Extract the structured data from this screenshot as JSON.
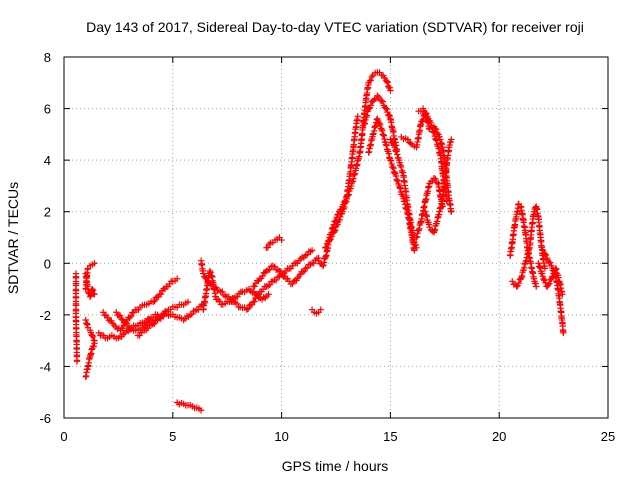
{
  "chart_data": {
    "type": "scatter",
    "title": "Day 143 of 2017, Sidereal Day-to-day VTEC variation (SDTVAR) for receiver roji",
    "xlabel": "GPS time / hours",
    "ylabel": "SDTVAR / TECUs",
    "xlim": [
      0,
      25
    ],
    "ylim": [
      -6,
      8
    ],
    "xticks": [
      0,
      5,
      10,
      15,
      20,
      25
    ],
    "yticks": [
      -6,
      -4,
      -2,
      0,
      2,
      4,
      6,
      8
    ],
    "grid": true,
    "marker": "+",
    "color": "#ff0000",
    "series": [
      {
        "name": "SDTVAR",
        "tracks": [
          [
            [
              0.55,
              -0.4
            ],
            [
              0.55,
              -2.1
            ],
            [
              0.6,
              -3.8
            ]
          ],
          [
            [
              1.0,
              -4.4
            ],
            [
              1.1,
              -4.0
            ],
            [
              1.2,
              -3.6
            ],
            [
              1.3,
              -3.3
            ],
            [
              1.4,
              -3.1
            ]
          ],
          [
            [
              1.0,
              -1.0
            ],
            [
              1.05,
              -0.5
            ],
            [
              1.1,
              -0.2
            ],
            [
              1.2,
              -0.1
            ],
            [
              1.3,
              -0.05
            ],
            [
              1.4,
              -0.0
            ]
          ],
          [
            [
              1.0,
              -0.4
            ],
            [
              1.1,
              -1.0
            ],
            [
              1.2,
              -1.3
            ],
            [
              1.3,
              -1.0
            ],
            [
              1.4,
              -1.2
            ]
          ],
          [
            [
              1.0,
              -2.2
            ],
            [
              1.1,
              -2.5
            ],
            [
              1.2,
              -2.6
            ],
            [
              1.3,
              -2.8
            ],
            [
              1.4,
              -3.0
            ]
          ],
          [
            [
              1.6,
              -2.7
            ],
            [
              1.9,
              -2.9
            ],
            [
              2.2,
              -2.8
            ],
            [
              2.5,
              -2.9
            ],
            [
              2.8,
              -2.7
            ],
            [
              3.1,
              -2.5
            ],
            [
              3.4,
              -2.4
            ],
            [
              3.7,
              -2.3
            ],
            [
              4.0,
              -2.1
            ],
            [
              4.3,
              -2.0
            ]
          ],
          [
            [
              1.8,
              -1.9
            ],
            [
              2.0,
              -2.1
            ],
            [
              2.3,
              -2.4
            ],
            [
              2.6,
              -2.6
            ],
            [
              2.9,
              -2.2
            ],
            [
              3.2,
              -1.9
            ],
            [
              3.5,
              -1.7
            ],
            [
              3.8,
              -1.6
            ],
            [
              4.1,
              -1.5
            ],
            [
              4.4,
              -1.2
            ],
            [
              4.7,
              -0.9
            ],
            [
              5.0,
              -0.7
            ],
            [
              5.2,
              -0.6
            ]
          ],
          [
            [
              2.4,
              -1.9
            ],
            [
              2.7,
              -2.2
            ],
            [
              3.0,
              -2.5
            ],
            [
              3.3,
              -2.6
            ],
            [
              3.6,
              -2.5
            ],
            [
              3.9,
              -2.3
            ],
            [
              4.2,
              -2.2
            ],
            [
              4.5,
              -2.0
            ],
            [
              4.8,
              -1.8
            ],
            [
              5.1,
              -1.7
            ],
            [
              5.4,
              -1.6
            ],
            [
              5.7,
              -1.5
            ]
          ],
          [
            [
              3.4,
              -2.8
            ],
            [
              3.7,
              -2.6
            ],
            [
              4.0,
              -2.4
            ],
            [
              4.3,
              -2.2
            ],
            [
              4.6,
              -2.0
            ],
            [
              4.9,
              -2.0
            ],
            [
              5.2,
              -2.1
            ],
            [
              5.5,
              -2.2
            ],
            [
              5.8,
              -2.0
            ],
            [
              6.1,
              -1.8
            ],
            [
              6.4,
              -1.6
            ]
          ],
          [
            [
              5.2,
              -5.4
            ],
            [
              5.5,
              -5.45
            ],
            [
              5.8,
              -5.5
            ],
            [
              6.1,
              -5.6
            ],
            [
              6.3,
              -5.7
            ]
          ],
          [
            [
              6.4,
              -1.8
            ],
            [
              6.5,
              -1.3
            ],
            [
              6.6,
              -0.8
            ],
            [
              6.7,
              -0.3
            ],
            [
              6.8,
              -0.5
            ],
            [
              6.9,
              -1.0
            ],
            [
              7.0,
              -1.4
            ],
            [
              7.3,
              -1.6
            ],
            [
              7.6,
              -1.5
            ],
            [
              7.9,
              -1.3
            ],
            [
              8.2,
              -1.1
            ],
            [
              8.5,
              -1.0
            ],
            [
              8.8,
              -1.2
            ],
            [
              9.1,
              -1.4
            ],
            [
              9.4,
              -1.2
            ]
          ],
          [
            [
              6.3,
              0.1
            ],
            [
              6.4,
              -0.4
            ],
            [
              6.6,
              -0.7
            ],
            [
              6.9,
              -0.9
            ],
            [
              7.2,
              -1.1
            ],
            [
              7.5,
              -1.3
            ],
            [
              7.8,
              -1.5
            ],
            [
              8.1,
              -1.7
            ],
            [
              8.4,
              -1.8
            ],
            [
              8.7,
              -1.5
            ],
            [
              9.0,
              -1.1
            ],
            [
              9.3,
              -0.9
            ],
            [
              9.6,
              -0.7
            ],
            [
              9.9,
              -0.5
            ],
            [
              10.2,
              -0.3
            ],
            [
              10.5,
              -0.1
            ],
            [
              10.8,
              0.1
            ],
            [
              11.1,
              0.3
            ],
            [
              11.4,
              0.5
            ]
          ],
          [
            [
              9.3,
              0.6
            ],
            [
              9.5,
              0.8
            ],
            [
              9.7,
              0.9
            ],
            [
              9.9,
              1.0
            ],
            [
              10.0,
              0.9
            ]
          ],
          [
            [
              8.7,
              -0.9
            ],
            [
              9.0,
              -0.6
            ],
            [
              9.3,
              -0.3
            ],
            [
              9.6,
              -0.1
            ],
            [
              9.9,
              -0.3
            ],
            [
              10.2,
              -0.6
            ],
            [
              10.5,
              -0.8
            ],
            [
              10.8,
              -0.5
            ],
            [
              11.1,
              -0.2
            ],
            [
              11.4,
              0.0
            ],
            [
              11.7,
              0.2
            ]
          ],
          [
            [
              11.4,
              -1.8
            ],
            [
              11.5,
              -1.9
            ],
            [
              11.7,
              -1.9
            ],
            [
              11.8,
              -1.8
            ]
          ],
          [
            [
              11.7,
              0.1
            ],
            [
              11.9,
              -0.1
            ],
            [
              12.0,
              0.2
            ],
            [
              12.1,
              0.5
            ],
            [
              12.2,
              1.0
            ],
            [
              12.4,
              1.5
            ],
            [
              12.6,
              1.9
            ],
            [
              12.8,
              2.2
            ],
            [
              13.0,
              2.6
            ],
            [
              13.1,
              3.2
            ],
            [
              13.2,
              3.8
            ],
            [
              13.3,
              4.5
            ],
            [
              13.4,
              5.2
            ],
            [
              13.5,
              5.7
            ]
          ],
          [
            [
              12.0,
              0.6
            ],
            [
              12.2,
              0.9
            ],
            [
              12.4,
              1.2
            ],
            [
              12.6,
              1.6
            ],
            [
              12.8,
              2.0
            ],
            [
              13.0,
              2.5
            ],
            [
              13.2,
              3.0
            ],
            [
              13.4,
              3.6
            ],
            [
              13.6,
              4.3
            ],
            [
              13.7,
              5.0
            ],
            [
              13.8,
              5.8
            ],
            [
              13.9,
              6.5
            ],
            [
              14.0,
              7.0
            ],
            [
              14.2,
              7.3
            ],
            [
              14.4,
              7.4
            ],
            [
              14.6,
              7.3
            ],
            [
              14.8,
              7.1
            ],
            [
              15.0,
              6.7
            ]
          ],
          [
            [
              13.8,
              5.4
            ],
            [
              14.0,
              6.0
            ],
            [
              14.2,
              6.3
            ],
            [
              14.4,
              6.5
            ],
            [
              14.6,
              6.3
            ],
            [
              14.8,
              6.0
            ],
            [
              15.0,
              5.6
            ],
            [
              15.1,
              5.2
            ],
            [
              15.2,
              4.8
            ],
            [
              15.3,
              4.4
            ]
          ],
          [
            [
              14.0,
              4.3
            ],
            [
              14.2,
              5.0
            ],
            [
              14.4,
              5.6
            ],
            [
              14.6,
              5.2
            ],
            [
              14.8,
              4.6
            ],
            [
              15.0,
              4.0
            ],
            [
              15.2,
              3.5
            ],
            [
              15.4,
              3.0
            ],
            [
              15.6,
              2.5
            ],
            [
              15.8,
              1.9
            ],
            [
              15.9,
              1.5
            ],
            [
              16.0,
              1.0
            ],
            [
              16.1,
              0.5
            ]
          ],
          [
            [
              15.0,
              4.8
            ],
            [
              15.2,
              4.5
            ],
            [
              15.4,
              4.0
            ],
            [
              15.6,
              3.4
            ],
            [
              15.7,
              2.8
            ],
            [
              15.8,
              2.2
            ],
            [
              15.9,
              1.7
            ],
            [
              16.0,
              1.2
            ],
            [
              16.1,
              0.8
            ],
            [
              16.2,
              0.6
            ]
          ],
          [
            [
              15.5,
              4.9
            ],
            [
              15.8,
              4.8
            ],
            [
              16.0,
              4.6
            ],
            [
              16.2,
              4.5
            ],
            [
              16.4,
              5.4
            ],
            [
              16.6,
              5.8
            ],
            [
              16.8,
              5.2
            ],
            [
              17.0,
              5.3
            ],
            [
              17.2,
              5.0
            ],
            [
              17.4,
              4.5
            ],
            [
              17.5,
              4.0
            ],
            [
              17.6,
              3.2
            ],
            [
              17.7,
              2.5
            ],
            [
              17.8,
              2.0
            ]
          ],
          [
            [
              16.3,
              5.9
            ],
            [
              16.5,
              6.0
            ],
            [
              16.7,
              5.7
            ],
            [
              16.9,
              5.3
            ],
            [
              17.1,
              4.8
            ],
            [
              17.3,
              4.2
            ],
            [
              17.4,
              3.5
            ],
            [
              17.5,
              3.0
            ],
            [
              17.6,
              2.4
            ]
          ],
          [
            [
              16.2,
              1.0
            ],
            [
              16.4,
              1.6
            ],
            [
              16.6,
              2.4
            ],
            [
              16.8,
              3.1
            ],
            [
              17.0,
              3.3
            ],
            [
              17.2,
              3.1
            ],
            [
              17.3,
              2.6
            ],
            [
              17.4,
              2.2
            ]
          ],
          [
            [
              16.6,
              2.0
            ],
            [
              16.8,
              1.4
            ],
            [
              17.0,
              1.2
            ],
            [
              17.2,
              1.8
            ],
            [
              17.4,
              2.5
            ],
            [
              17.5,
              3.2
            ],
            [
              17.6,
              3.9
            ],
            [
              17.7,
              4.5
            ],
            [
              17.8,
              4.8
            ]
          ],
          [
            [
              20.5,
              0.3
            ],
            [
              20.6,
              0.8
            ],
            [
              20.7,
              1.4
            ],
            [
              20.8,
              1.9
            ],
            [
              20.9,
              2.3
            ],
            [
              21.0,
              2.2
            ],
            [
              21.1,
              1.7
            ],
            [
              21.2,
              1.2
            ],
            [
              21.3,
              0.6
            ],
            [
              21.4,
              0.2
            ],
            [
              21.5,
              -0.2
            ],
            [
              21.6,
              -0.6
            ],
            [
              21.7,
              -0.9
            ]
          ],
          [
            [
              20.6,
              -0.7
            ],
            [
              20.8,
              -0.9
            ],
            [
              21.0,
              -0.6
            ],
            [
              21.2,
              0.0
            ],
            [
              21.4,
              0.6
            ],
            [
              21.5,
              1.4
            ],
            [
              21.6,
              2.0
            ],
            [
              21.7,
              2.2
            ],
            [
              21.8,
              1.8
            ],
            [
              21.9,
              1.0
            ],
            [
              22.0,
              0.3
            ],
            [
              22.1,
              -0.2
            ]
          ],
          [
            [
              21.8,
              0.0
            ],
            [
              22.0,
              -0.5
            ],
            [
              22.2,
              -0.9
            ],
            [
              22.4,
              -0.6
            ],
            [
              22.6,
              -0.2
            ],
            [
              22.8,
              -0.8
            ],
            [
              22.9,
              -1.2
            ]
          ],
          [
            [
              22.0,
              0.5
            ],
            [
              22.2,
              0.2
            ],
            [
              22.4,
              -0.1
            ],
            [
              22.6,
              -0.5
            ],
            [
              22.7,
              -1.0
            ],
            [
              22.8,
              -1.6
            ],
            [
              22.9,
              -2.3
            ],
            [
              22.95,
              -2.7
            ]
          ]
        ]
      }
    ]
  }
}
